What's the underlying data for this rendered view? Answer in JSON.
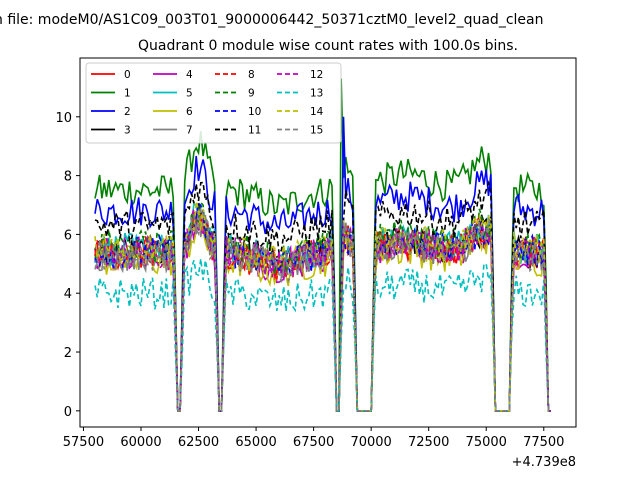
{
  "window_title": "n file: modeM0/AS1C09_003T01_9000006442_50371cztM0_level2_quad_clean",
  "chart_data": {
    "type": "line",
    "title": "Quadrant 0 module wise count rates with 100.0s bins.",
    "xlabel": "",
    "ylabel": "",
    "x_offset_label": "+4.739e8",
    "xlim": [
      57350,
      78900
    ],
    "ylim": [
      -0.55,
      12.0
    ],
    "x_ticks": [
      57500,
      60000,
      62500,
      65000,
      67500,
      70000,
      72500,
      75000,
      77500
    ],
    "x_tick_labels": [
      "57500",
      "60000",
      "62500",
      "65000",
      "67500",
      "70000",
      "72500",
      "75000",
      "77500"
    ],
    "y_ticks": [
      0,
      2,
      4,
      6,
      8,
      10
    ],
    "y_tick_labels": [
      "0",
      "2",
      "4",
      "6",
      "8",
      "10"
    ],
    "legend_position": "top-left",
    "legend_columns": 4,
    "x_start": 58000,
    "x_end": 77800,
    "x_step": 100,
    "gaps": [
      [
        61550,
        61700
      ],
      [
        63400,
        63550
      ],
      [
        68450,
        68600
      ],
      [
        69400,
        70000
      ],
      [
        75400,
        76000
      ],
      [
        77700,
        77800
      ]
    ],
    "series": [
      {
        "name": "0",
        "color": "#ff0000",
        "dash": "solid",
        "base": 5.3
      },
      {
        "name": "1",
        "color": "#008000",
        "dash": "solid",
        "base": 7.5
      },
      {
        "name": "2",
        "color": "#0000ff",
        "dash": "solid",
        "base": 6.8
      },
      {
        "name": "3",
        "color": "#000000",
        "dash": "solid",
        "base": 5.4
      },
      {
        "name": "4",
        "color": "#bf00bf",
        "dash": "solid",
        "base": 5.3
      },
      {
        "name": "5",
        "color": "#00bfbf",
        "dash": "solid",
        "base": 5.5
      },
      {
        "name": "6",
        "color": "#bfbf00",
        "dash": "solid",
        "base": 5.1
      },
      {
        "name": "7",
        "color": "#808080",
        "dash": "solid",
        "base": 5.3
      },
      {
        "name": "8",
        "color": "#ff0000",
        "dash": "dashed",
        "base": 5.4
      },
      {
        "name": "9",
        "color": "#008000",
        "dash": "dashed",
        "base": 5.6
      },
      {
        "name": "10",
        "color": "#0000ff",
        "dash": "dashed",
        "base": 5.4
      },
      {
        "name": "11",
        "color": "#000000",
        "dash": "dashed",
        "base": 6.3
      },
      {
        "name": "12",
        "color": "#bf00bf",
        "dash": "dashed",
        "base": 5.4
      },
      {
        "name": "13",
        "color": "#00bfbf",
        "dash": "dashed",
        "base": 4.0
      },
      {
        "name": "14",
        "color": "#bfbf00",
        "dash": "dashed",
        "base": 5.5
      },
      {
        "name": "15",
        "color": "#808080",
        "dash": "dashed",
        "base": 5.3
      }
    ]
  }
}
